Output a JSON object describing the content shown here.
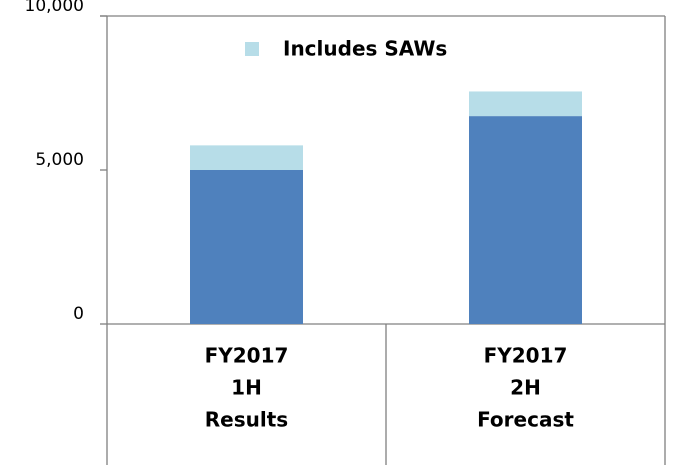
{
  "chart_data": {
    "type": "stacked_bar",
    "categories": [
      [
        "FY2017",
        "1H",
        "Results"
      ],
      [
        "FY2017",
        "2H",
        "Forecast"
      ]
    ],
    "series": [
      {
        "color": "#4f81bd",
        "values": [
          5000,
          6750
        ]
      },
      {
        "name": "Includes SAWs",
        "color": "#b7dde8",
        "values": [
          800,
          800
        ]
      }
    ],
    "ylim": [
      0,
      10000
    ],
    "yticks": [
      0,
      {
        "value": 5000,
        "label": "5,000"
      },
      {
        "value": 10000,
        "label": "10,000"
      }
    ],
    "legend": "top"
  }
}
